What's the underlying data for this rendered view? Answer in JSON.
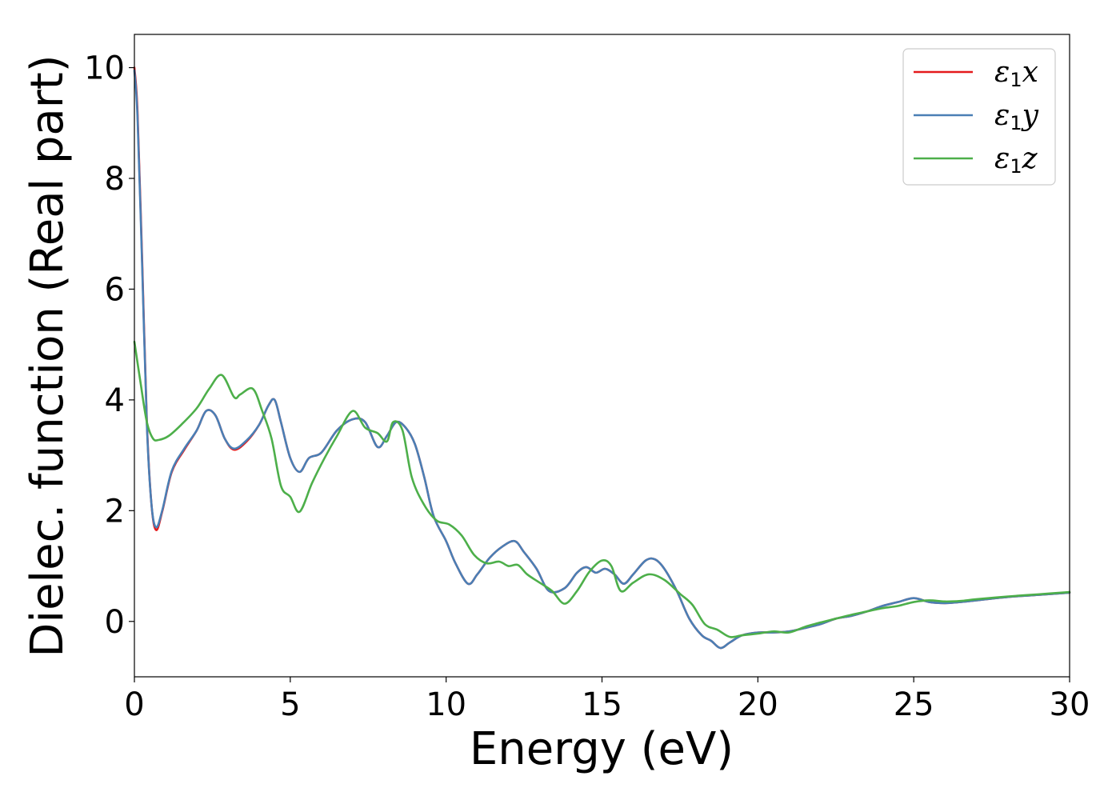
{
  "chart_data": {
    "type": "line",
    "title": "",
    "xlabel": "Energy (eV)",
    "ylabel": "Dielec. function (Real part)",
    "xlim": [
      0,
      30
    ],
    "ylim": [
      -1,
      10.6
    ],
    "xticks": [
      0,
      5,
      10,
      15,
      20,
      25,
      30
    ],
    "yticks": [
      0,
      2,
      4,
      6,
      8,
      10
    ],
    "xtick_labels": [
      "0",
      "5",
      "10",
      "15",
      "20",
      "25",
      "30"
    ],
    "ytick_labels": [
      "0",
      "2",
      "4",
      "6",
      "8",
      "10"
    ],
    "grid": false,
    "legend_position": "top-right",
    "series": [
      {
        "name": "ε1x",
        "legend_base": "ε",
        "legend_sub": "1",
        "legend_suffix": "x",
        "color": "#e41a1c",
        "x": [
          0,
          0.1,
          0.25,
          0.4,
          0.55,
          0.7,
          0.9,
          1.2,
          1.6,
          2.0,
          2.3,
          2.6,
          2.9,
          3.2,
          3.6,
          4.0,
          4.3,
          4.5,
          4.7,
          5.0,
          5.3,
          5.6,
          6.0,
          6.5,
          7.0,
          7.4,
          7.8,
          8.1,
          8.4,
          8.7,
          9.0,
          9.3,
          9.6,
          10.0,
          10.3,
          10.7,
          11.0,
          11.4,
          11.8,
          12.2,
          12.5,
          12.9,
          13.3,
          13.8,
          14.2,
          14.5,
          14.8,
          15.1,
          15.4,
          15.7,
          16.0,
          16.4,
          16.7,
          17.0,
          17.4,
          17.8,
          18.2,
          18.5,
          18.8,
          19.1,
          19.5,
          20.0,
          20.5,
          21.0,
          21.5,
          22.0,
          22.5,
          23.0,
          23.5,
          24.0,
          24.5,
          25.0,
          25.5,
          26.0,
          26.5,
          27.0,
          28.0,
          29.0,
          30.0
        ],
        "y": [
          10.0,
          9.2,
          6.5,
          3.6,
          2.1,
          1.65,
          2.0,
          2.7,
          3.1,
          3.45,
          3.8,
          3.72,
          3.3,
          3.1,
          3.25,
          3.55,
          3.9,
          4.0,
          3.6,
          2.95,
          2.7,
          2.95,
          3.05,
          3.45,
          3.65,
          3.6,
          3.15,
          3.35,
          3.6,
          3.5,
          3.2,
          2.6,
          1.9,
          1.45,
          1.05,
          0.68,
          0.85,
          1.15,
          1.35,
          1.45,
          1.25,
          0.95,
          0.55,
          0.6,
          0.88,
          0.98,
          0.88,
          0.95,
          0.85,
          0.68,
          0.85,
          1.1,
          1.12,
          0.95,
          0.55,
          0.05,
          -0.25,
          -0.35,
          -0.48,
          -0.38,
          -0.25,
          -0.2,
          -0.2,
          -0.18,
          -0.12,
          -0.05,
          0.05,
          0.1,
          0.18,
          0.28,
          0.35,
          0.42,
          0.35,
          0.33,
          0.35,
          0.38,
          0.44,
          0.48,
          0.52
        ]
      },
      {
        "name": "ε1y",
        "legend_base": "ε",
        "legend_sub": "1",
        "legend_suffix": "y",
        "color": "#4a7fb5",
        "x": [
          0,
          0.1,
          0.25,
          0.4,
          0.55,
          0.7,
          0.9,
          1.2,
          1.6,
          2.0,
          2.3,
          2.6,
          2.9,
          3.2,
          3.6,
          4.0,
          4.3,
          4.5,
          4.7,
          5.0,
          5.3,
          5.6,
          6.0,
          6.5,
          7.0,
          7.4,
          7.8,
          8.1,
          8.4,
          8.7,
          9.0,
          9.3,
          9.6,
          10.0,
          10.3,
          10.7,
          11.0,
          11.4,
          11.8,
          12.2,
          12.5,
          12.9,
          13.3,
          13.8,
          14.2,
          14.5,
          14.8,
          15.1,
          15.4,
          15.7,
          16.0,
          16.4,
          16.7,
          17.0,
          17.4,
          17.8,
          18.2,
          18.5,
          18.8,
          19.1,
          19.5,
          20.0,
          20.5,
          21.0,
          21.5,
          22.0,
          22.5,
          23.0,
          23.5,
          24.0,
          24.5,
          25.0,
          25.5,
          26.0,
          26.5,
          27.0,
          28.0,
          29.0,
          30.0
        ],
        "y": [
          9.95,
          9.1,
          6.4,
          3.55,
          2.1,
          1.7,
          2.02,
          2.72,
          3.12,
          3.45,
          3.8,
          3.72,
          3.3,
          3.12,
          3.27,
          3.55,
          3.9,
          4.0,
          3.6,
          2.95,
          2.7,
          2.95,
          3.05,
          3.45,
          3.65,
          3.6,
          3.15,
          3.35,
          3.6,
          3.5,
          3.2,
          2.6,
          1.9,
          1.45,
          1.05,
          0.68,
          0.85,
          1.15,
          1.35,
          1.45,
          1.25,
          0.95,
          0.55,
          0.6,
          0.88,
          0.98,
          0.88,
          0.95,
          0.85,
          0.68,
          0.85,
          1.1,
          1.12,
          0.95,
          0.55,
          0.05,
          -0.25,
          -0.35,
          -0.48,
          -0.38,
          -0.25,
          -0.2,
          -0.2,
          -0.18,
          -0.12,
          -0.05,
          0.05,
          0.1,
          0.18,
          0.28,
          0.35,
          0.42,
          0.35,
          0.33,
          0.35,
          0.38,
          0.44,
          0.48,
          0.52
        ]
      },
      {
        "name": "ε1z",
        "legend_base": "ε",
        "legend_sub": "1",
        "legend_suffix": "z",
        "color": "#4daf4a",
        "x": [
          0,
          0.2,
          0.4,
          0.6,
          0.8,
          1.1,
          1.5,
          2.0,
          2.4,
          2.8,
          3.2,
          3.4,
          3.8,
          4.1,
          4.4,
          4.7,
          5.0,
          5.3,
          5.7,
          6.1,
          6.5,
          7.0,
          7.4,
          7.8,
          8.1,
          8.3,
          8.6,
          8.9,
          9.3,
          9.7,
          10.1,
          10.5,
          10.9,
          11.3,
          11.7,
          12.0,
          12.3,
          12.6,
          13.0,
          13.4,
          13.8,
          14.2,
          14.6,
          15.0,
          15.3,
          15.6,
          16.0,
          16.5,
          17.0,
          17.5,
          17.9,
          18.3,
          18.7,
          19.1,
          19.5,
          20.0,
          20.5,
          21.0,
          21.5,
          22.0,
          22.5,
          23.0,
          23.5,
          24.0,
          24.5,
          25.0,
          25.5,
          26.0,
          26.5,
          27.0,
          28.0,
          29.0,
          30.0
        ],
        "y": [
          5.05,
          4.3,
          3.6,
          3.3,
          3.28,
          3.35,
          3.55,
          3.85,
          4.2,
          4.45,
          4.05,
          4.1,
          4.2,
          3.8,
          3.3,
          2.45,
          2.25,
          1.98,
          2.5,
          2.95,
          3.35,
          3.8,
          3.5,
          3.4,
          3.25,
          3.6,
          3.45,
          2.6,
          2.1,
          1.82,
          1.75,
          1.55,
          1.2,
          1.05,
          1.08,
          1.0,
          1.02,
          0.85,
          0.7,
          0.55,
          0.32,
          0.55,
          0.9,
          1.1,
          1.0,
          0.55,
          0.7,
          0.85,
          0.75,
          0.5,
          0.3,
          -0.05,
          -0.15,
          -0.28,
          -0.25,
          -0.22,
          -0.18,
          -0.2,
          -0.1,
          -0.02,
          0.05,
          0.12,
          0.18,
          0.24,
          0.28,
          0.35,
          0.38,
          0.36,
          0.37,
          0.4,
          0.45,
          0.49,
          0.53
        ]
      }
    ]
  }
}
